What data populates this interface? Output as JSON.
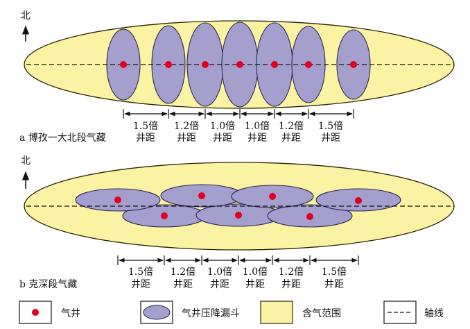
{
  "colors": {
    "gas_range_fill": "#fbf3a3",
    "gas_range_stroke": "#2a2200",
    "funnel_fill": "#a59fce",
    "funnel_stroke": "#2a2850",
    "well_dot": "#e3001b",
    "axis_line": "#111111"
  },
  "panel_a": {
    "north_label": "北",
    "caption": "a 博孜一大北段气藏",
    "spacings": [
      {
        "multiple": "1.5倍",
        "unit": "井距"
      },
      {
        "multiple": "1.2倍",
        "unit": "井距"
      },
      {
        "multiple": "1.0倍",
        "unit": "井距"
      },
      {
        "multiple": "1.0倍",
        "unit": "井距"
      },
      {
        "multiple": "1.2倍",
        "unit": "井距"
      },
      {
        "multiple": "1.5倍",
        "unit": "井距"
      }
    ]
  },
  "panel_b": {
    "north_label": "北",
    "caption": "b 克深段气藏",
    "spacings": [
      {
        "multiple": "1.5倍",
        "unit": "井距"
      },
      {
        "multiple": "1.2倍",
        "unit": "井距"
      },
      {
        "multiple": "1.0倍",
        "unit": "井距"
      },
      {
        "multiple": "1.0倍",
        "unit": "井距"
      },
      {
        "multiple": "1.2倍",
        "unit": "井距"
      },
      {
        "multiple": "1.5倍",
        "unit": "井距"
      }
    ]
  },
  "legend": {
    "well": "气井",
    "funnel": "气井压降漏斗",
    "gas_range": "含气范围",
    "axis": "轴线"
  }
}
